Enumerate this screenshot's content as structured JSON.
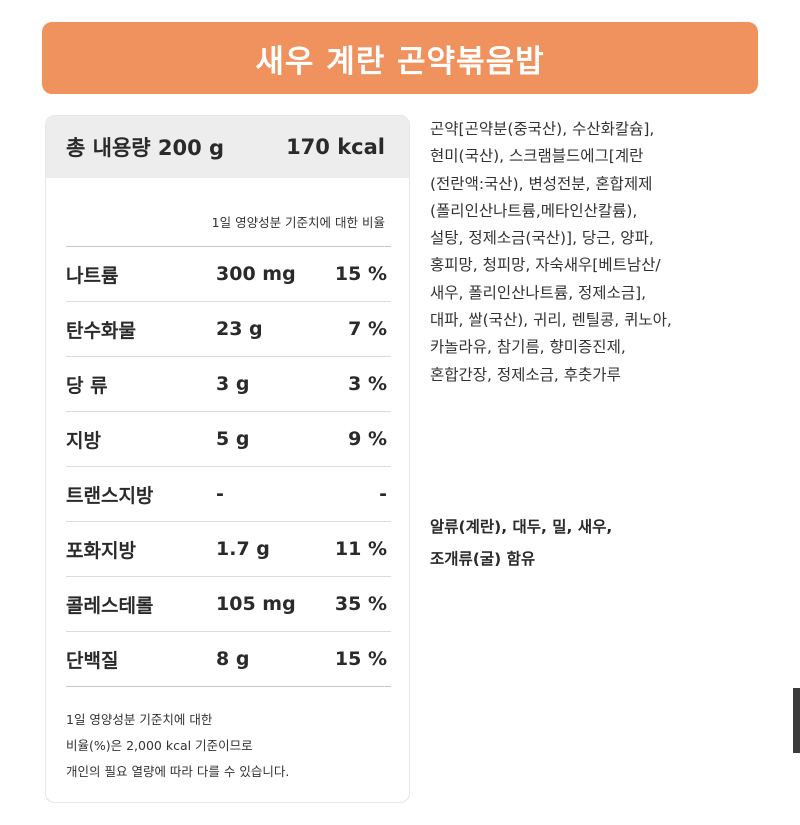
{
  "title": "새우 계란 곤약볶음밥",
  "nutrition": {
    "total_label": "총 내용량 200 g",
    "calories": "170 kcal",
    "daily_header": "1일 영양성분 기준치에 대한 비율",
    "rows": [
      {
        "name": "나트륨",
        "amount": "300 mg",
        "percent": "15 %"
      },
      {
        "name": "탄수화물",
        "amount": "23 g",
        "percent": "7 %"
      },
      {
        "name": "당 류",
        "amount": "3 g",
        "percent": "3 %"
      },
      {
        "name": "지방",
        "amount": "5 g",
        "percent": "9 %"
      },
      {
        "name": "트랜스지방",
        "amount": "-",
        "percent": "-"
      },
      {
        "name": "포화지방",
        "amount": "1.7 g",
        "percent": "11 %"
      },
      {
        "name": "콜레스테롤",
        "amount": "105 mg",
        "percent": "35 %"
      },
      {
        "name": "단백질",
        "amount": "8 g",
        "percent": "15 %"
      }
    ],
    "note_lines": [
      "1일 영양성분 기준치에 대한",
      "비율(%)은 2,000 kcal 기준이므로",
      "개인의 필요 열량에 따라 다를 수 있습니다."
    ]
  },
  "ingredients_lines": [
    "곤약[곤약분(중국산), 수산화칼슘],",
    "현미(국산), 스크램블드에그[계란",
    "(전란액:국산), 변성전분, 혼합제제",
    "(폴리인산나트륨,메타인산칼륨),",
    "설탕, 정제소금(국산)], 당근, 양파,",
    " 홍피망, 청피망, 자숙새우[베트남산/",
    "새우, 폴리인산나트륨, 정제소금],",
    "대파, 쌀(국산), 귀리, 렌틸콩, 퀴노아,",
    "카놀라유, 참기름, 향미증진제,",
    "혼합간장, 정제소금, 후춧가루"
  ],
  "allergy_lines": [
    "알류(계란), 대두, 밀, 새우,",
    "조개류(굴) 함유"
  ]
}
